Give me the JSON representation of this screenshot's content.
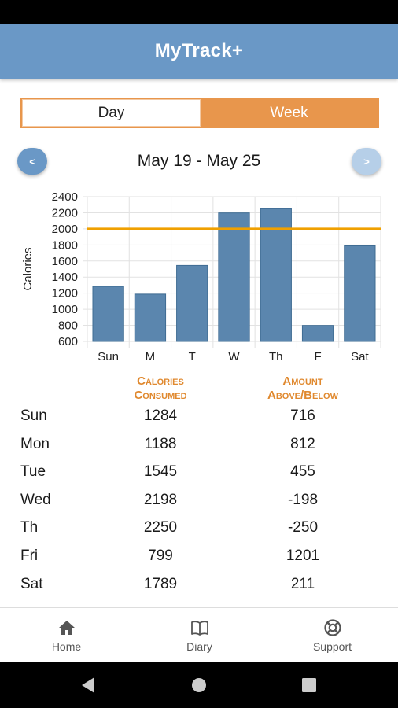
{
  "app": {
    "title": "MyTrack+"
  },
  "toggle": {
    "day_label": "Day",
    "week_label": "Week",
    "selected": "Week"
  },
  "date_nav": {
    "prev_label": "<",
    "next_label": ">",
    "range": "May 19 - May 25"
  },
  "colors": {
    "header": "#6a98c6",
    "accent": "#e8964c",
    "bar": "#5b86ae",
    "goal_line": "#f0a000"
  },
  "chart_data": {
    "type": "bar",
    "categories": [
      "Sun",
      "M",
      "T",
      "W",
      "Th",
      "F",
      "Sat"
    ],
    "values": [
      1284,
      1188,
      1545,
      2198,
      2250,
      799,
      1789
    ],
    "ylabel": "Calories",
    "xlabel": "",
    "ylim": [
      600,
      2400
    ],
    "yticks": [
      600,
      800,
      1000,
      1200,
      1400,
      1600,
      1800,
      2000,
      2200,
      2400
    ],
    "goal_line": 2000,
    "grid": true
  },
  "table": {
    "headers": {
      "consumed": [
        "Calories",
        "Consumed"
      ],
      "diff": [
        "Amount",
        "Above/Below"
      ]
    },
    "rows": [
      {
        "day": "Sun",
        "consumed": "1284",
        "diff": "716"
      },
      {
        "day": "Mon",
        "consumed": "1188",
        "diff": "812"
      },
      {
        "day": "Tue",
        "consumed": "1545",
        "diff": "455"
      },
      {
        "day": "Wed",
        "consumed": "2198",
        "diff": "-198"
      },
      {
        "day": "Th",
        "consumed": "2250",
        "diff": "-250"
      },
      {
        "day": "Fri",
        "consumed": "799",
        "diff": "1201"
      },
      {
        "day": "Sat",
        "consumed": "1789",
        "diff": "211"
      }
    ]
  },
  "bottom_nav": {
    "tabs": [
      {
        "label": "Home",
        "icon": "home-icon"
      },
      {
        "label": "Diary",
        "icon": "book-icon"
      },
      {
        "label": "Support",
        "icon": "lifebuoy-icon"
      }
    ]
  }
}
